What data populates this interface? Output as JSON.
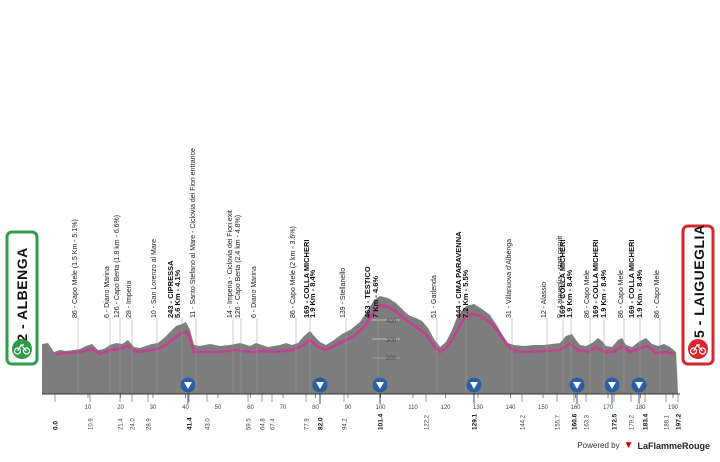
{
  "start": {
    "number": "12",
    "name": "ALBENGA",
    "label": "12 - ALBENGA",
    "color": "#2e9c4a"
  },
  "finish": {
    "number": "5",
    "name": "LAIGUEGLIA",
    "label": "5 - LAIGUEGLIA",
    "color": "#d6262b"
  },
  "colors": {
    "profile_fill": "#7d7d7d",
    "ground": "#f3f7d2",
    "route": "#c2418f",
    "gpm": "#2b5fa3"
  },
  "elevation_ticks": [
    "400",
    "300",
    "200",
    "100"
  ],
  "waypoints": [
    {
      "text": "86 - Capo Mele (1.5 Km - 5.1%)",
      "bold": false
    },
    {
      "text": "6 - Diano Marina",
      "bold": false
    },
    {
      "text": "126 - Capo Berta (1.8 km - 6.6%)",
      "bold": false
    },
    {
      "text": "28 - Imperia",
      "bold": false
    },
    {
      "text": "10 - San Lorenzo al Mare",
      "bold": false
    },
    {
      "text": "243 - CIPRESSA",
      "bold": true
    },
    {
      "text": "5.6 Km - 4.1%",
      "bold": true
    },
    {
      "text": "11 - Santo Stefano al Mare - Ciclovia dei Fiori entrance",
      "bold": false
    },
    {
      "text": "14 - Imperia - Ciclovia dei Fiori exit",
      "bold": false
    },
    {
      "text": "126 - Capo Berta (2.4 km - 4.8%)",
      "bold": false
    },
    {
      "text": "6 - Diano Marina",
      "bold": false
    },
    {
      "text": "86 - Capo Mele (2 km - 3.6%)",
      "bold": false
    },
    {
      "text": "169 - COLLA MICHERI",
      "bold": true
    },
    {
      "text": "1.9 Km - 8.4%",
      "bold": true
    },
    {
      "text": "139 - Stellanello",
      "bold": false
    },
    {
      "text": "463 - TESTICO",
      "bold": true
    },
    {
      "text": "7 Km - 4.6%",
      "bold": true
    },
    {
      "text": "51 - Garlenda",
      "bold": false
    },
    {
      "text": "444 - CIMA PARAVENNA",
      "bold": true
    },
    {
      "text": "7.2 Km - 5.5%",
      "bold": true
    },
    {
      "text": "31 - Villanuova d'Albenga",
      "bold": false
    },
    {
      "text": "12 - Alassio",
      "bold": false
    },
    {
      "text": "9 - Laigueglia - start circuit",
      "bold": false
    },
    {
      "text": "169 - COLLA MICHERI",
      "bold": true
    },
    {
      "text": "1.9 Km - 8.4%",
      "bold": true
    },
    {
      "text": "86 - Capo Mele",
      "bold": false
    },
    {
      "text": "169 - COLLA MICHERI",
      "bold": true
    },
    {
      "text": "1.9 Km - 8.4%",
      "bold": true
    },
    {
      "text": "86 - Capo Mele",
      "bold": false
    },
    {
      "text": "169 - COLLA MICHERI",
      "bold": true
    },
    {
      "text": "1.9 Km - 8.4%",
      "bold": true
    },
    {
      "text": "86 - Capo Mele",
      "bold": false
    }
  ],
  "km_axis": [
    {
      "label": "0.0",
      "bold": true
    },
    {
      "label": "10.9",
      "bold": false
    },
    {
      "label": "21.4",
      "bold": false
    },
    {
      "label": "24.0",
      "bold": false
    },
    {
      "label": "28.9",
      "bold": false
    },
    {
      "label": "41.4",
      "bold": true
    },
    {
      "label": "43.0",
      "bold": false
    },
    {
      "label": "59.5",
      "bold": false
    },
    {
      "label": "64.8",
      "bold": false
    },
    {
      "label": "67.4",
      "bold": false
    },
    {
      "label": "77.9",
      "bold": false
    },
    {
      "label": "82.0",
      "bold": true
    },
    {
      "label": "94.2",
      "bold": false
    },
    {
      "label": "101.4",
      "bold": true
    },
    {
      "label": "122.2",
      "bold": false
    },
    {
      "label": "129.1",
      "bold": true
    },
    {
      "label": "144.2",
      "bold": false
    },
    {
      "label": "155.7",
      "bold": false
    },
    {
      "label": "160.6",
      "bold": true
    },
    {
      "label": "163.3",
      "bold": false
    },
    {
      "label": "172.5",
      "bold": true
    },
    {
      "label": "179.2",
      "bold": false
    },
    {
      "label": "183.4",
      "bold": true
    },
    {
      "label": "188.1",
      "bold": false
    },
    {
      "label": "197.2",
      "bold": true
    }
  ],
  "distance_scale": [
    "10",
    "20",
    "30",
    "40",
    "50",
    "60",
    "70",
    "80",
    "90",
    "100",
    "110",
    "120",
    "130",
    "140",
    "150",
    "160",
    "170",
    "180",
    "190"
  ],
  "footer": {
    "powered_by": "Powered by",
    "brand": "LaFlammeRouge"
  }
}
